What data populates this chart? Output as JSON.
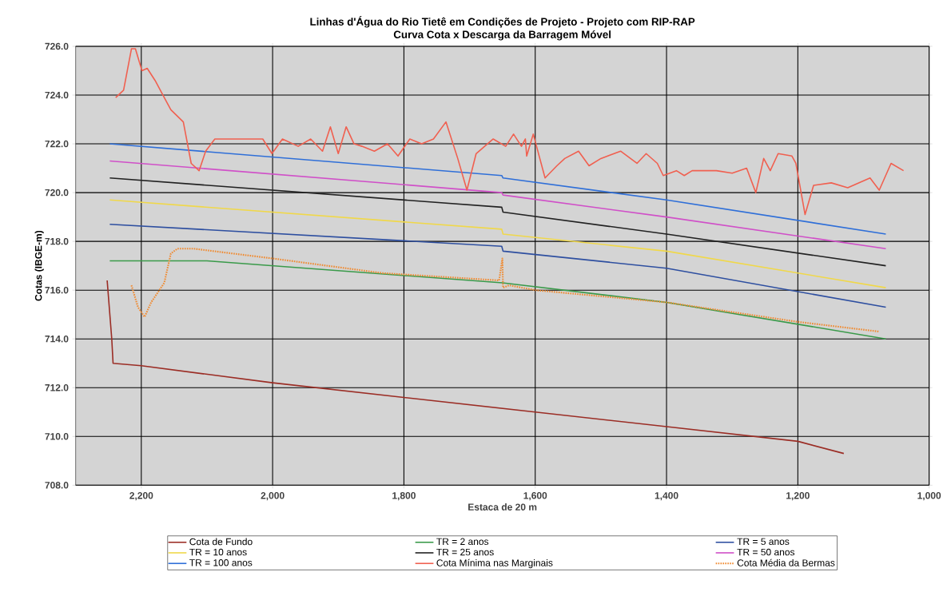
{
  "chart_data": {
    "type": "line",
    "title": "Linhas d'Água do Rio Tietê em Condições de Projeto - Projeto com RIP-RAP",
    "subtitle": "Curva Cota x Descarga da Barragem Móvel",
    "xlabel": "Estaca de 20 m",
    "ylabel": "Cotas (IBGE-m)",
    "xlim": [
      2300,
      1000
    ],
    "xticks": [
      {
        "value": 2200,
        "label": "2,200"
      },
      {
        "value": 2000,
        "label": "2,000"
      },
      {
        "value": 1800,
        "label": "1,800"
      },
      {
        "value": 1600,
        "label": "1,600"
      },
      {
        "value": 1400,
        "label": "1,400"
      },
      {
        "value": 1200,
        "label": "1,200"
      },
      {
        "value": 1000,
        "label": "1,000"
      }
    ],
    "ylim": [
      708,
      726
    ],
    "yticks": [
      {
        "value": 708,
        "label": "708.0"
      },
      {
        "value": 710,
        "label": "710.0"
      },
      {
        "value": 712,
        "label": "712.0"
      },
      {
        "value": 714,
        "label": "714.0"
      },
      {
        "value": 716,
        "label": "716.0"
      },
      {
        "value": 718,
        "label": "718.0"
      },
      {
        "value": 720,
        "label": "720.0"
      },
      {
        "value": 722,
        "label": "722.0"
      },
      {
        "value": 724,
        "label": "724.0"
      },
      {
        "value": 726,
        "label": "726.0"
      }
    ],
    "grid": true,
    "legend": "bottom",
    "marker": "none",
    "series": [
      {
        "name": "Cota de Fundo",
        "color": "#9b2d25",
        "x": [
          2252,
          2245,
          2243,
          2200,
          2000,
          1800,
          1600,
          1400,
          1200,
          1130
        ],
        "values": [
          716.4,
          714.0,
          713.0,
          712.9,
          712.2,
          711.6,
          711.0,
          710.4,
          709.8,
          709.3
        ]
      },
      {
        "name": "TR = 2 anos",
        "color": "#3a9a4a",
        "x": [
          2248,
          2100,
          1650,
          1400,
          1066
        ],
        "values": [
          717.2,
          717.2,
          716.3,
          715.5,
          714.0
        ]
      },
      {
        "name": "TR = 5 anos",
        "color": "#2e4fa0",
        "x": [
          2248,
          1651,
          1649,
          1400,
          1066
        ],
        "values": [
          718.7,
          717.8,
          717.6,
          716.9,
          715.3
        ]
      },
      {
        "name": "TR = 10 anos",
        "color": "#f0d84a",
        "x": [
          2248,
          1651,
          1649,
          1400,
          1066
        ],
        "values": [
          719.7,
          718.5,
          718.3,
          717.6,
          716.1
        ]
      },
      {
        "name": "TR = 25 anos",
        "color": "#222222",
        "x": [
          2248,
          1651,
          1649,
          1400,
          1066
        ],
        "values": [
          720.6,
          719.4,
          719.2,
          718.3,
          717.0
        ]
      },
      {
        "name": "TR = 50 anos",
        "color": "#d050c8",
        "x": [
          2248,
          1651,
          1649,
          1400,
          1066
        ],
        "values": [
          721.3,
          720.0,
          719.9,
          719.0,
          717.7
        ]
      },
      {
        "name": "TR = 100 anos",
        "color": "#2f6fd8",
        "x": [
          2248,
          1651,
          1649,
          1400,
          1066
        ],
        "values": [
          722.0,
          720.7,
          720.6,
          719.7,
          718.3
        ]
      },
      {
        "name": "Cota Mínima nas Marginais",
        "color": "#f06050",
        "x": [
          2239,
          2227,
          2215,
          2209,
          2199,
          2191,
          2179,
          2167,
          2155,
          2136,
          2124,
          2112,
          2102,
          2088,
          2052,
          2015,
          2001,
          1985,
          1961,
          1942,
          1924,
          1912,
          1900,
          1888,
          1876,
          1864,
          1845,
          1825,
          1809,
          1791,
          1773,
          1755,
          1736,
          1718,
          1704,
          1690,
          1664,
          1645,
          1633,
          1621,
          1615,
          1613,
          1603,
          1585,
          1567,
          1555,
          1534,
          1518,
          1500,
          1470,
          1445,
          1431,
          1414,
          1405,
          1385,
          1373,
          1361,
          1324,
          1300,
          1278,
          1264,
          1252,
          1242,
          1230,
          1209,
          1203,
          1189,
          1176,
          1149,
          1124,
          1090,
          1076,
          1058,
          1039
        ],
        "values": [
          723.9,
          724.2,
          725.9,
          725.9,
          725.0,
          725.1,
          724.6,
          724.0,
          723.4,
          722.9,
          721.2,
          720.9,
          721.7,
          722.2,
          722.2,
          722.2,
          721.6,
          722.2,
          721.9,
          722.2,
          721.7,
          722.7,
          721.6,
          722.7,
          722.0,
          721.9,
          721.7,
          722.0,
          721.5,
          722.2,
          722.0,
          722.2,
          722.9,
          721.4,
          720.1,
          721.6,
          722.2,
          721.9,
          722.4,
          721.9,
          722.2,
          721.5,
          722.4,
          720.6,
          721.1,
          721.4,
          721.7,
          721.1,
          721.4,
          721.7,
          721.2,
          721.6,
          721.2,
          720.7,
          720.9,
          720.7,
          720.9,
          720.9,
          720.8,
          721.0,
          720.0,
          721.4,
          720.9,
          721.6,
          721.5,
          721.2,
          719.1,
          720.3,
          720.4,
          720.2,
          720.6,
          720.1,
          721.2,
          720.9
        ]
      },
      {
        "name": "Cota Média da Bermas",
        "color": "#f08a30",
        "line_style": "dotted",
        "x": [
          2215,
          2205,
          2195,
          2185,
          2175,
          2165,
          2155,
          2145,
          2120,
          2000,
          1833,
          1655,
          1650,
          1649,
          1640,
          1600,
          1400,
          1200,
          1076
        ],
        "values": [
          716.2,
          715.3,
          714.9,
          715.5,
          715.9,
          716.3,
          717.5,
          717.7,
          717.7,
          717.3,
          716.7,
          716.4,
          717.3,
          716.1,
          716.2,
          716.0,
          715.5,
          714.7,
          714.3
        ]
      }
    ]
  }
}
